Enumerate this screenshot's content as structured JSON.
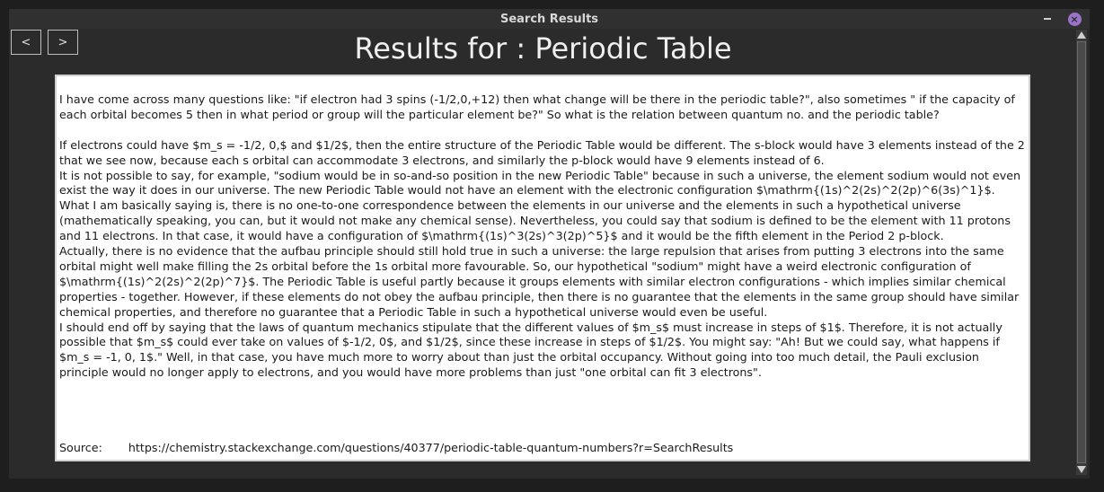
{
  "window": {
    "title": "Search Results",
    "close_glyph": "×"
  },
  "nav": {
    "back_label": "<",
    "forward_label": ">"
  },
  "page_title": "Results for : Periodic Table",
  "content": {
    "question": "I have come across many questions like: \"if electron had 3 spins (-1/2,0,+12) then what change will be there in the periodic table?\", also sometimes \" if the capacity of each orbital becomes 5 then in what period or group will the particular element be?\" So what is the relation between quantum no. and the periodic table?",
    "answer": [
      "If electrons could have $m_s = -1/2, 0,$ and $1/2$, then the entire structure of the Periodic Table would be different. The s-block would have 3 elements instead of the 2 that we see now, because each s orbital can accommodate 3 electrons, and similarly the p-block would have 9 elements instead of 6.",
      "It is not possible to say, for example, \"sodium would be in so-and-so position in the new Periodic Table\" because in such a universe, the element sodium would not even exist the way it does in our universe. The new Periodic Table would not have an element with the electronic configuration $\\mathrm{(1s)^2(2s)^2(2p)^6(3s)^1}$. What I am basically saying is, there is no one-to-one correspondence between the elements in our universe and the elements in such a hypothetical universe (mathematically speaking, you can, but it would not make any chemical sense). Nevertheless, you could say that sodium is defined to be the element with 11 protons and 11 electrons. In that case, it would have a configuration of $\\mathrm{(1s)^3(2s)^3(2p)^5}$ and it would be the fifth element in the Period 2 p-block.",
      "Actually, there is no evidence that the aufbau principle should still hold true in such a universe: the large repulsion that arises from putting 3 electrons into the same orbital might well make filling the 2s orbital before the 1s orbital more favourable. So, our hypothetical \"sodium\" might have a weird electronic configuration of $\\mathrm{(1s)^2(2s)^2(2p)^7}$. The Periodic Table is useful partly because it groups elements with similar electron configurations - which implies similar chemical properties - together. However, if these elements do not obey the aufbau principle, then there is no guarantee that the elements in the same group should have similar chemical properties, and therefore no guarantee that a Periodic Table in such a hypothetical universe would even be useful.",
      "I should end off by saying that the laws of quantum mechanics stipulate that the different values of $m_s$ must increase in steps of $1$. Therefore, it is not actually possible that $m_s$ could ever take on values of $-1/2, 0$, and $1/2$, since these increase in steps of $1/2$. You might say: \"Ah! But we could say, what happens if $m_s = -1, 0, 1$.\" Well, in that case, you have much more to worry about than just the orbital occupancy. Without going into too much detail, the Pauli exclusion principle would no longer apply to electrons, and you would have more problems than just \"one orbital can fit 3 electrons\"."
    ],
    "source_label": "Source:",
    "source_url": "https://chemistry.stackexchange.com/questions/40377/periodic-table-quantum-numbers?r=SearchResults"
  }
}
